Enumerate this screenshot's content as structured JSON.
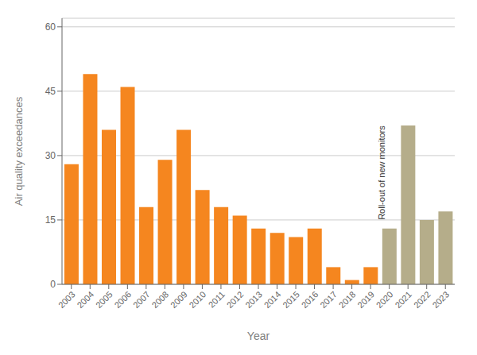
{
  "chart_data": {
    "type": "bar",
    "x": [
      2003,
      2004,
      2005,
      2006,
      2007,
      2008,
      2009,
      2010,
      2011,
      2012,
      2013,
      2014,
      2015,
      2016,
      2017,
      2018,
      2019,
      2020,
      2021,
      2022,
      2023
    ],
    "values": [
      28,
      49,
      36,
      46,
      18,
      29,
      36,
      22,
      18,
      16,
      13,
      12,
      11,
      13,
      4,
      1,
      4,
      13,
      37,
      15,
      17
    ],
    "colors": [
      "#F5861F",
      "#F5861F",
      "#F5861F",
      "#F5861F",
      "#F5861F",
      "#F5861F",
      "#F5861F",
      "#F5861F",
      "#F5861F",
      "#F5861F",
      "#F5861F",
      "#F5861F",
      "#F5861F",
      "#F5861F",
      "#F5861F",
      "#F5861F",
      "#F5861F",
      "#B5AD8A",
      "#B5AD8A",
      "#B5AD8A",
      "#B5AD8A"
    ],
    "xlabel": "Year",
    "ylabel": "Air quality exceedances",
    "xlim": [
      2002.5,
      2023.5
    ],
    "xticks": [
      2003,
      2004,
      2005,
      2006,
      2007,
      2008,
      2009,
      2010,
      2011,
      2012,
      2013,
      2014,
      2015,
      2016,
      2017,
      2018,
      2019,
      2020,
      2021,
      2022,
      2023
    ],
    "ylim": [
      0,
      62
    ],
    "yticks": [
      0,
      15,
      30,
      45,
      60
    ],
    "grid": true,
    "annotations": [
      {
        "text": "Roll-out of new monitors",
        "x": 2019.6,
        "y": 26
      }
    ]
  }
}
